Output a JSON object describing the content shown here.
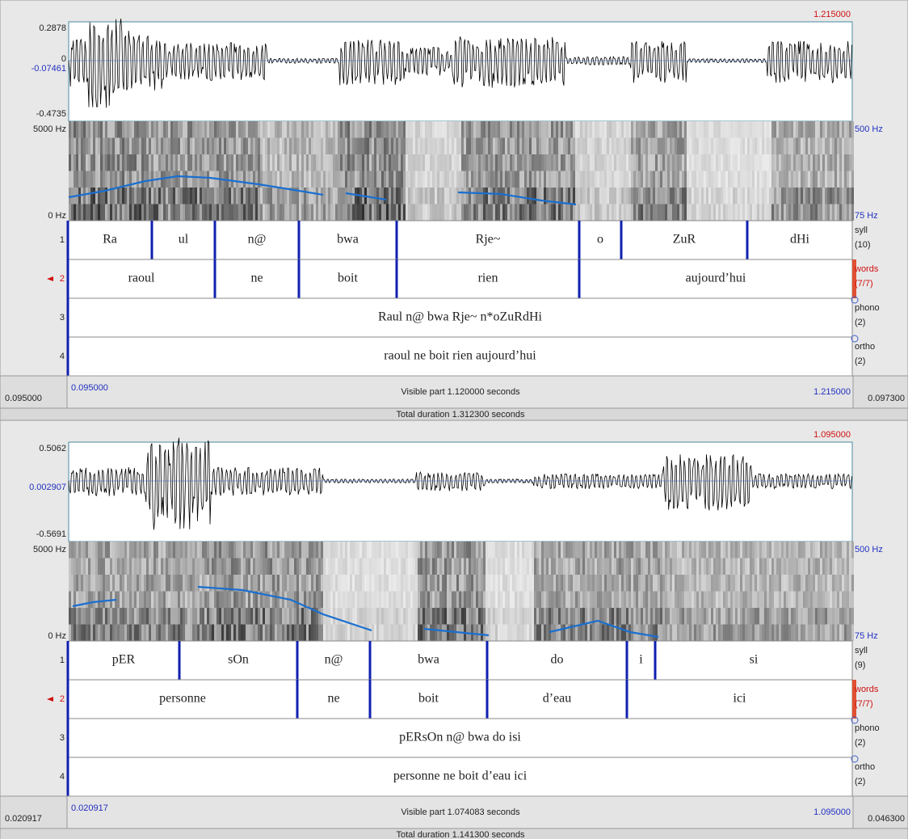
{
  "panels": [
    {
      "top_time": "1.215000",
      "waveform": {
        "top": "0.2878",
        "zero": "0",
        "mid": "-0.07461",
        "bottom": "-0.4735"
      },
      "spectrogram": {
        "top": "5000 Hz",
        "bottom": "0 Hz",
        "pitch_top": "500 Hz",
        "pitch_bottom": "75 Hz"
      },
      "tiers": [
        {
          "number": "1",
          "name": "syll",
          "count": "(10)",
          "intervals": [
            "Ra",
            "ul",
            "n@",
            "bwa",
            "Rje~",
            "o",
            "ZuR",
            "dHi"
          ]
        },
        {
          "number": "2",
          "name": "words",
          "count": "(7/7)",
          "intervals": [
            "raoul",
            "ne",
            "boit",
            "rien",
            "aujourd’hui"
          ]
        },
        {
          "number": "3",
          "name": "phono",
          "count": "(2)",
          "intervals": [
            "Raul n@ bwa Rje~ n*oZuRdHi"
          ]
        },
        {
          "number": "4",
          "name": "ortho",
          "count": "(2)",
          "intervals": [
            "raoul ne boit rien aujourd’hui"
          ]
        }
      ],
      "footer": {
        "left": "0.095000",
        "start": "0.095000",
        "visible": "Visible part 1.120000 seconds",
        "end": "1.215000",
        "right": "0.097300"
      },
      "total": "Total duration 1.312300 seconds"
    },
    {
      "top_time": "1.095000",
      "waveform": {
        "top": "0.5062",
        "mid": "0.002907",
        "bottom": "-0.5691"
      },
      "spectrogram": {
        "top": "5000 Hz",
        "bottom": "0 Hz",
        "pitch_top": "500 Hz",
        "pitch_bottom": "75 Hz"
      },
      "tiers": [
        {
          "number": "1",
          "name": "syll",
          "count": "(9)",
          "intervals": [
            "pER",
            "sOn",
            "n@",
            "bwa",
            "do",
            "i",
            "si"
          ]
        },
        {
          "number": "2",
          "name": "words",
          "count": "(7/7)",
          "intervals": [
            "personne",
            "ne",
            "boit",
            "d’eau",
            "ici"
          ]
        },
        {
          "number": "3",
          "name": "phono",
          "count": "(2)",
          "intervals": [
            "pERsOn n@ bwa do isi"
          ]
        },
        {
          "number": "4",
          "name": "ortho",
          "count": "(2)",
          "intervals": [
            "personne ne boit d’eau ici"
          ]
        }
      ],
      "footer": {
        "left": "0.020917",
        "start": "0.020917",
        "visible": "Visible part 1.074083 seconds",
        "end": "1.095000",
        "right": "0.046300"
      },
      "total": "Total duration 1.141300 seconds"
    }
  ]
}
